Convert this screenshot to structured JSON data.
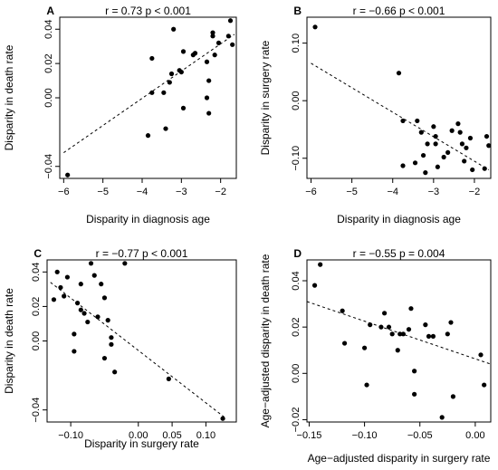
{
  "chart_data": [
    {
      "type": "scatter",
      "panel": "A",
      "stat": "r = 0.73   p < 0.001",
      "xlabel": "Disparity in diagnosis age",
      "ylabel": "Disparity in death rate",
      "xlim": [
        -6.1,
        -1.6
      ],
      "ylim": [
        -0.047,
        0.047
      ],
      "xticks": [
        -6,
        -5,
        -4,
        -3,
        -2
      ],
      "xtick_labels": [
        "−6",
        "−5",
        "−4",
        "−3",
        "−2"
      ],
      "yticks": [
        -0.04,
        0.0,
        0.02,
        0.04
      ],
      "ytick_labels": [
        "−0.04",
        "0.00",
        "0.02",
        "0.04"
      ],
      "fit": [
        [
          -6.0,
          -0.032
        ],
        [
          -1.65,
          0.037
        ]
      ],
      "points": [
        [
          -5.9,
          -0.045
        ],
        [
          -3.85,
          -0.022
        ],
        [
          -3.4,
          -0.018
        ],
        [
          -3.75,
          0.023
        ],
        [
          -3.75,
          0.003
        ],
        [
          -3.45,
          0.003
        ],
        [
          -3.3,
          0.009
        ],
        [
          -3.25,
          0.014
        ],
        [
          -3.2,
          0.04
        ],
        [
          -3.05,
          0.016
        ],
        [
          -3.0,
          0.015
        ],
        [
          -2.95,
          0.027
        ],
        [
          -2.95,
          -0.006
        ],
        [
          -2.7,
          0.025
        ],
        [
          -2.65,
          0.026
        ],
        [
          -2.35,
          0.021
        ],
        [
          -2.35,
          0.0
        ],
        [
          -2.3,
          0.01
        ],
        [
          -2.3,
          -0.009
        ],
        [
          -2.2,
          0.036
        ],
        [
          -2.2,
          0.038
        ],
        [
          -2.15,
          0.025
        ],
        [
          -2.05,
          0.032
        ],
        [
          -1.8,
          0.036
        ],
        [
          -1.75,
          0.045
        ],
        [
          -1.7,
          0.031
        ]
      ]
    },
    {
      "type": "scatter",
      "panel": "B",
      "stat": "r = −0.66   p < 0.001",
      "xlabel": "Disparity in diagnosis age",
      "ylabel": "Disparity in surgery rate",
      "xlim": [
        -6.1,
        -1.6
      ],
      "ylim": [
        -0.135,
        0.145
      ],
      "xticks": [
        -6,
        -5,
        -4,
        -3,
        -2
      ],
      "xtick_labels": [
        "−6",
        "−5",
        "−4",
        "−3",
        "−2"
      ],
      "yticks": [
        -0.1,
        0.0,
        0.1
      ],
      "ytick_labels": [
        "−0.10",
        "0.00",
        "0.10"
      ],
      "fit": [
        [
          -6.0,
          0.065
        ],
        [
          -1.65,
          -0.12
        ]
      ],
      "points": [
        [
          -5.9,
          0.128
        ],
        [
          -3.85,
          0.048
        ],
        [
          -3.75,
          -0.035
        ],
        [
          -3.75,
          -0.113
        ],
        [
          -3.45,
          -0.108
        ],
        [
          -3.4,
          -0.035
        ],
        [
          -3.3,
          -0.055
        ],
        [
          -3.25,
          -0.095
        ],
        [
          -3.2,
          -0.125
        ],
        [
          -3.15,
          -0.075
        ],
        [
          -3.0,
          -0.045
        ],
        [
          -2.95,
          -0.062
        ],
        [
          -2.95,
          -0.075
        ],
        [
          -2.9,
          -0.115
        ],
        [
          -2.75,
          -0.098
        ],
        [
          -2.65,
          -0.09
        ],
        [
          -2.55,
          -0.052
        ],
        [
          -2.4,
          -0.04
        ],
        [
          -2.35,
          -0.055
        ],
        [
          -2.3,
          -0.075
        ],
        [
          -2.25,
          -0.105
        ],
        [
          -2.2,
          -0.082
        ],
        [
          -2.1,
          -0.065
        ],
        [
          -2.05,
          -0.12
        ],
        [
          -1.75,
          -0.118
        ],
        [
          -1.7,
          -0.062
        ],
        [
          -1.65,
          -0.078
        ]
      ]
    },
    {
      "type": "scatter",
      "panel": "C",
      "stat": "r = −0.77   p < 0.001",
      "xlabel": "Disparity in surgery rate",
      "ylabel": "Disparity in death rate",
      "xlim": [
        -0.135,
        0.145
      ],
      "ylim": [
        -0.047,
        0.047
      ],
      "xticks": [
        -0.1,
        0.0,
        0.05,
        0.1
      ],
      "xtick_labels": [
        "−0.10",
        "0.00",
        "0.05",
        "0.10"
      ],
      "yticks": [
        -0.04,
        0.0,
        0.02,
        0.04
      ],
      "ytick_labels": [
        "−0.04",
        "0.00",
        "0.02",
        "0.04"
      ],
      "fit": [
        [
          -0.13,
          0.034
        ],
        [
          0.13,
          -0.045
        ]
      ],
      "points": [
        [
          -0.125,
          0.024
        ],
        [
          -0.12,
          0.04
        ],
        [
          -0.115,
          0.031
        ],
        [
          -0.11,
          0.026
        ],
        [
          -0.105,
          0.037
        ],
        [
          -0.095,
          0.004
        ],
        [
          -0.095,
          -0.006
        ],
        [
          -0.09,
          0.022
        ],
        [
          -0.085,
          0.033
        ],
        [
          -0.085,
          0.018
        ],
        [
          -0.08,
          0.016
        ],
        [
          -0.075,
          0.011
        ],
        [
          -0.07,
          0.045
        ],
        [
          -0.065,
          0.038
        ],
        [
          -0.06,
          0.014
        ],
        [
          -0.055,
          0.033
        ],
        [
          -0.05,
          0.025
        ],
        [
          -0.05,
          -0.01
        ],
        [
          -0.045,
          0.012
        ],
        [
          -0.04,
          0.002
        ],
        [
          -0.04,
          -0.002
        ],
        [
          -0.035,
          -0.018
        ],
        [
          -0.02,
          0.045
        ],
        [
          0.045,
          -0.022
        ],
        [
          0.125,
          -0.045
        ]
      ]
    },
    {
      "type": "scatter",
      "panel": "D",
      "stat": "r = −0.55   p = 0.004",
      "xlabel": "Age−adjusted disparity in surgery rate",
      "ylabel": "Age−adjusted disparity in death rate",
      "xlim": [
        -0.152,
        0.014
      ],
      "ylim": [
        -0.021,
        0.049
      ],
      "xticks": [
        -0.15,
        -0.1,
        -0.05,
        0.0
      ],
      "xtick_labels": [
        "−0.15",
        "−0.10",
        "−0.05",
        "0.00"
      ],
      "yticks": [
        -0.02,
        0.0,
        0.02,
        0.04
      ],
      "ytick_labels": [
        "−0.02",
        "0.00",
        "0.02",
        "0.04"
      ],
      "fit": [
        [
          -0.152,
          0.031
        ],
        [
          0.014,
          0.004
        ]
      ],
      "points": [
        [
          -0.145,
          0.038
        ],
        [
          -0.14,
          0.047
        ],
        [
          -0.12,
          0.027
        ],
        [
          -0.118,
          0.013
        ],
        [
          -0.1,
          0.011
        ],
        [
          -0.098,
          -0.005
        ],
        [
          -0.095,
          0.021
        ],
        [
          -0.085,
          0.02
        ],
        [
          -0.082,
          0.026
        ],
        [
          -0.078,
          0.02
        ],
        [
          -0.075,
          0.017
        ],
        [
          -0.07,
          0.01
        ],
        [
          -0.068,
          0.017
        ],
        [
          -0.065,
          0.017
        ],
        [
          -0.06,
          0.019
        ],
        [
          -0.058,
          0.028
        ],
        [
          -0.055,
          0.001
        ],
        [
          -0.055,
          -0.009
        ],
        [
          -0.045,
          0.021
        ],
        [
          -0.042,
          0.016
        ],
        [
          -0.038,
          0.016
        ],
        [
          -0.03,
          -0.019
        ],
        [
          -0.025,
          0.017
        ],
        [
          -0.022,
          0.022
        ],
        [
          -0.02,
          -0.01
        ],
        [
          0.005,
          0.008
        ],
        [
          0.008,
          -0.005
        ]
      ]
    }
  ]
}
